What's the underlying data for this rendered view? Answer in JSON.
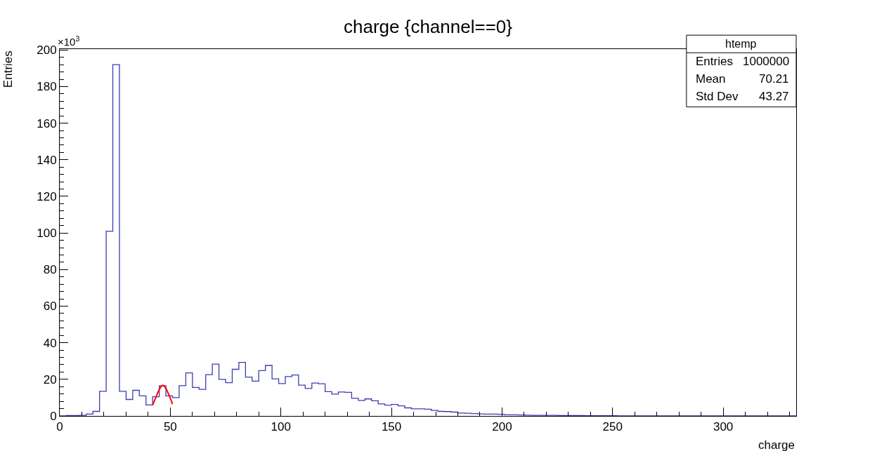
{
  "chart_data": {
    "type": "histogram",
    "title": "charge {channel==0}",
    "xlabel": "charge",
    "ylabel": "Entries",
    "color": "#3d3db3",
    "bins": [
      0,
      3,
      6,
      9,
      12,
      15,
      18,
      21,
      24,
      27,
      30,
      33,
      36,
      39,
      42,
      45,
      48,
      51,
      54,
      57,
      60,
      63,
      66,
      69,
      72,
      75,
      78,
      81,
      84,
      87,
      90,
      93,
      96,
      99,
      102,
      105,
      108,
      111,
      114,
      117,
      120,
      123,
      126,
      129,
      132,
      135,
      138,
      141,
      144,
      147,
      150,
      153,
      156,
      159,
      162,
      165,
      168,
      171,
      174,
      177,
      180,
      183,
      186,
      189,
      192,
      195,
      198,
      201,
      204,
      207,
      210,
      213,
      216,
      219,
      222,
      225,
      228,
      231,
      234,
      237,
      240,
      243,
      246,
      249,
      252,
      255,
      258,
      261,
      264,
      267,
      270,
      273,
      276,
      279,
      282,
      285,
      288,
      291,
      294,
      297,
      300,
      303,
      306,
      309,
      312,
      315,
      318,
      321,
      324,
      327,
      330,
      333
    ],
    "values": [
      0,
      0.2,
      0.2,
      0.3,
      1,
      2.5,
      13.5,
      101,
      192,
      13.5,
      9,
      14,
      11,
      6,
      10.5,
      16.5,
      11,
      10,
      16.5,
      23.5,
      15.6,
      14.5,
      22.6,
      28.3,
      20,
      18.2,
      25.5,
      29.3,
      21.2,
      19,
      24.8,
      27.6,
      20.3,
      17.7,
      21.5,
      22.4,
      16.8,
      15,
      18,
      17.6,
      13.3,
      11.9,
      13.1,
      12.9,
      9.6,
      8.5,
      9.3,
      8.3,
      6.6,
      5.9,
      6.3,
      5.5,
      4.4,
      3.9,
      3.9,
      3.7,
      3,
      2.5,
      2.4,
      2.1,
      1.6,
      1.5,
      1.3,
      1.1,
      1,
      1,
      0.9,
      0.6,
      0.6,
      0.5,
      0.4,
      0.3,
      0.3,
      0.3,
      0.3,
      0.2,
      0.2,
      0.2,
      0.2,
      0.1,
      0.1,
      0.1,
      0.1,
      0.1,
      0,
      0,
      0,
      0,
      0,
      0,
      0,
      0,
      0,
      0,
      0,
      0,
      0,
      0,
      0,
      0,
      0,
      0,
      0,
      0,
      0,
      0,
      0,
      0,
      0,
      0,
      0
    ],
    "series": [
      {
        "type": "line",
        "color": "#ff0000",
        "x": [
          42,
          43,
          44,
          45,
          46,
          46.5,
          47,
          48,
          49,
          50,
          51
        ],
        "values": [
          6,
          8.8,
          11.7,
          14.5,
          16.3,
          16.8,
          16.5,
          15.1,
          12.5,
          9.6,
          6.5
        ]
      }
    ],
    "xlim": [
      0,
      333
    ],
    "xticks": [
      0,
      50,
      100,
      150,
      200,
      250,
      300
    ],
    "ylim": [
      0,
      200.5
    ],
    "yticks": [
      0,
      20,
      40,
      60,
      80,
      100,
      120,
      140,
      160,
      180,
      200
    ],
    "annotations": [
      "×10$^{3}$",
      "htemp",
      "Entries",
      "1000000",
      "Mean",
      "70.21",
      "Std Dev",
      "43.27"
    ],
    "grid": false
  }
}
